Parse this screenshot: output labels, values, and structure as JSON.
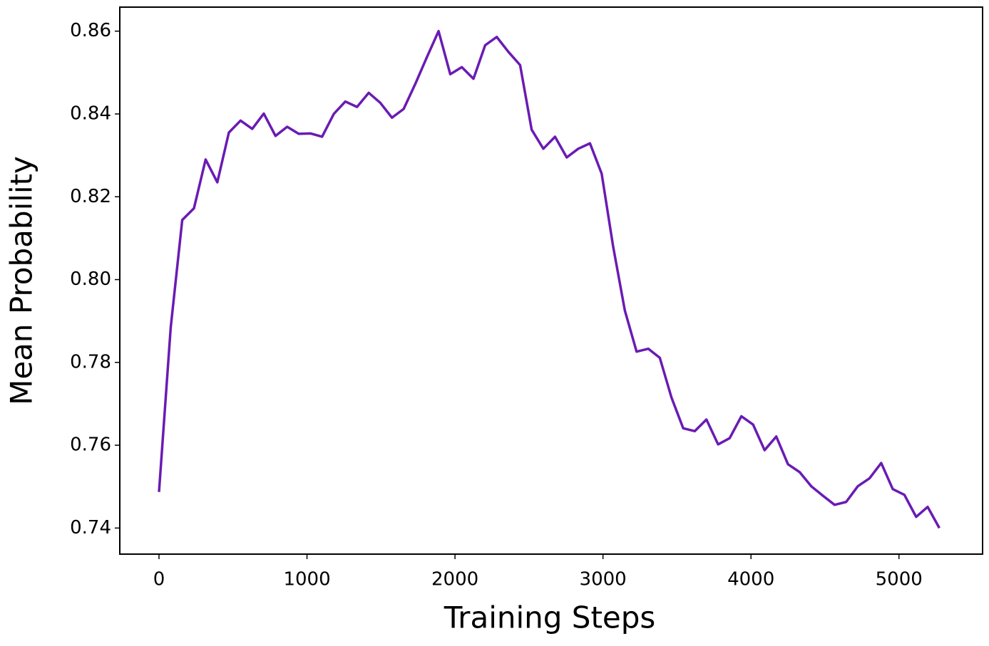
{
  "chart_data": {
    "type": "line",
    "xlabel": "Training Steps",
    "ylabel": "Mean Probability",
    "x": [
      0,
      79,
      157,
      236,
      315,
      394,
      472,
      551,
      630,
      708,
      787,
      866,
      944,
      1023,
      1102,
      1181,
      1259,
      1338,
      1417,
      1495,
      1574,
      1653,
      1731,
      1810,
      1889,
      1968,
      2046,
      2125,
      2204,
      2282,
      2361,
      2440,
      2518,
      2597,
      2676,
      2755,
      2833,
      2912,
      2991,
      3069,
      3148,
      3227,
      3306,
      3384,
      3463,
      3542,
      3620,
      3699,
      3778,
      3856,
      3935,
      4014,
      4092,
      4171,
      4250,
      4329,
      4407,
      4486,
      4565,
      4643,
      4722,
      4801,
      4880,
      4958,
      5037,
      5116,
      5194,
      5273
    ],
    "series": [
      {
        "name": "Mean Probability",
        "color": "#6a1bb3",
        "values": [
          0.7487,
          0.7884,
          0.8144,
          0.8172,
          0.829,
          0.8235,
          0.8355,
          0.8384,
          0.8364,
          0.8401,
          0.8347,
          0.8369,
          0.8352,
          0.8353,
          0.8345,
          0.84,
          0.843,
          0.8417,
          0.8451,
          0.8427,
          0.8391,
          0.8412,
          0.8472,
          0.8537,
          0.86,
          0.8496,
          0.8513,
          0.8485,
          0.8566,
          0.8586,
          0.855,
          0.8518,
          0.8362,
          0.8316,
          0.8345,
          0.8295,
          0.8316,
          0.8329,
          0.8256,
          0.8079,
          0.7925,
          0.7826,
          0.7833,
          0.7811,
          0.7715,
          0.7641,
          0.7634,
          0.7662,
          0.7602,
          0.7617,
          0.767,
          0.765,
          0.7588,
          0.7621,
          0.7554,
          0.7535,
          0.7501,
          0.7478,
          0.7456,
          0.7463,
          0.7501,
          0.752,
          0.7557,
          0.7494,
          0.748,
          0.7427,
          0.7451,
          0.74
        ]
      }
    ],
    "xlim": [
      -265,
      5565
    ],
    "ylim": [
      0.7337,
      0.8658
    ],
    "xticks": [
      0,
      1000,
      2000,
      3000,
      4000,
      5000
    ],
    "yticks": [
      {
        "value": 0.74,
        "label": "0.74"
      },
      {
        "value": 0.76,
        "label": "0.76"
      },
      {
        "value": 0.78,
        "label": "0.78"
      },
      {
        "value": 0.8,
        "label": "0.80"
      },
      {
        "value": 0.82,
        "label": "0.82"
      },
      {
        "value": 0.84,
        "label": "0.84"
      },
      {
        "value": 0.86,
        "label": "0.86"
      }
    ],
    "grid": false
  }
}
